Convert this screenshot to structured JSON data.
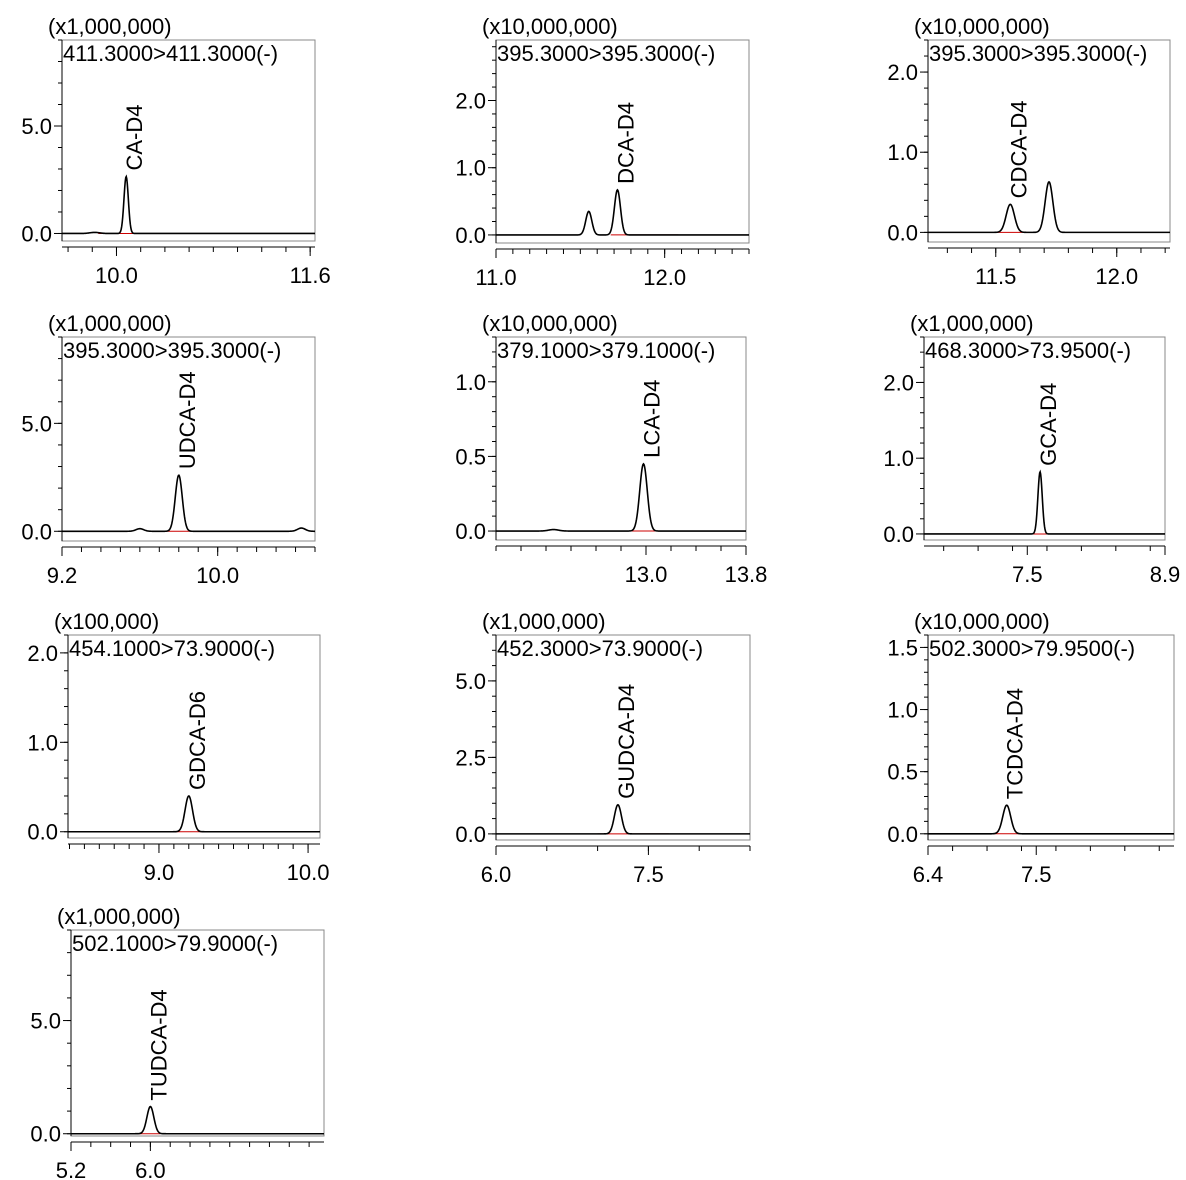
{
  "colors": {
    "trace": "#000000",
    "baseline": "#cc0000",
    "frame": "#888888",
    "axis": "#000000"
  },
  "chart_data": [
    {
      "type": "line",
      "scale": "(x1,000,000)",
      "transition": "411.3000>411.3000(-)",
      "xlim": [
        9.55,
        11.64
      ],
      "ylim": [
        -0.35,
        9.0
      ],
      "xticks": [
        "10.0",
        "11.6"
      ],
      "xtick_values": [
        10.0,
        11.6
      ],
      "yticks": [
        "0.0",
        "5.0"
      ],
      "ytick_values": [
        0.0,
        5.0
      ],
      "x_minor_step": 0.2,
      "y_minor_step": 1.0,
      "peaks": [
        {
          "label": "CA-D4",
          "x": 10.08,
          "height": 2.65,
          "width": 0.018
        },
        {
          "label": "",
          "x": 9.82,
          "height": 0.05,
          "width": 0.04
        }
      ],
      "baseline_range": [
        9.85,
        10.4
      ]
    },
    {
      "type": "line",
      "scale": "(x10,000,000)",
      "transition": "395.3000>395.3000(-)",
      "xlim": [
        11.0,
        12.5
      ],
      "ylim": [
        -0.12,
        2.9
      ],
      "xticks": [
        "11.0",
        "12.0"
      ],
      "xtick_values": [
        11.0,
        12.0
      ],
      "yticks": [
        "0.0",
        "1.0",
        "2.0"
      ],
      "ytick_values": [
        0.0,
        1.0,
        2.0
      ],
      "x_minor_step": 0.1,
      "y_minor_step": 0.2,
      "peaks": [
        {
          "label": "DCA-D4",
          "x": 11.72,
          "height": 0.67,
          "width": 0.018
        },
        {
          "label": "",
          "x": 11.55,
          "height": 0.35,
          "width": 0.018
        }
      ],
      "baseline_range": [
        11.68,
        12.08
      ]
    },
    {
      "type": "line",
      "scale": "(x10,000,000)",
      "transition": "395.3000>395.3000(-)",
      "xlim": [
        11.22,
        12.22
      ],
      "ylim": [
        -0.12,
        2.4
      ],
      "xticks": [
        "11.5",
        "12.0"
      ],
      "xtick_values": [
        11.5,
        12.0
      ],
      "yticks": [
        "0.0",
        "1.0",
        "2.0"
      ],
      "ytick_values": [
        0.0,
        1.0,
        2.0
      ],
      "x_minor_step": 0.1,
      "y_minor_step": 0.2,
      "peaks": [
        {
          "label": "CDCA-D4",
          "x": 11.56,
          "height": 0.35,
          "width": 0.017
        },
        {
          "label": "",
          "x": 11.72,
          "height": 0.63,
          "width": 0.016
        }
      ],
      "baseline_range": [
        11.5,
        11.63
      ]
    },
    {
      "type": "line",
      "scale": "(x1,000,000)",
      "transition": "395.3000>395.3000(-)",
      "xlim": [
        9.2,
        10.5
      ],
      "ylim": [
        -0.45,
        9.0
      ],
      "xticks": [
        "9.2",
        "10.0"
      ],
      "xtick_values": [
        9.2,
        10.0
      ],
      "yticks": [
        "0.0",
        "5.0"
      ],
      "ytick_values": [
        0.0,
        5.0
      ],
      "x_minor_step": 0.1,
      "y_minor_step": 1.0,
      "peaks": [
        {
          "label": "UDCA-D4",
          "x": 9.8,
          "height": 2.6,
          "width": 0.018
        },
        {
          "label": "",
          "x": 9.6,
          "height": 0.12,
          "width": 0.02
        },
        {
          "label": "",
          "x": 10.43,
          "height": 0.15,
          "width": 0.02
        }
      ],
      "baseline_range": [
        9.72,
        9.88
      ]
    },
    {
      "type": "line",
      "scale": "(x10,000,000)",
      "transition": "379.1000>379.1000(-)",
      "xlim": [
        11.8,
        13.8
      ],
      "ylim": [
        -0.06,
        1.3
      ],
      "xticks": [
        "13.0",
        "13.8"
      ],
      "xtick_values": [
        13.0,
        13.8
      ],
      "yticks": [
        "0.0",
        "0.5",
        "1.0"
      ],
      "ytick_values": [
        0.0,
        0.5,
        1.0
      ],
      "x_minor_step": 0.2,
      "y_minor_step": 0.1,
      "peaks": [
        {
          "label": "LCA-D4",
          "x": 12.98,
          "height": 0.45,
          "width": 0.03
        },
        {
          "label": "",
          "x": 12.26,
          "height": 0.01,
          "width": 0.04
        }
      ],
      "baseline_range": [
        12.75,
        13.55
      ]
    },
    {
      "type": "line",
      "scale": "(x1,000,000)",
      "transition": "468.3000>73.9500(-)",
      "xlim": [
        6.45,
        8.9
      ],
      "ylim": [
        -0.08,
        2.6
      ],
      "xticks": [
        "7.5",
        "8.9"
      ],
      "xtick_values": [
        7.5,
        8.9
      ],
      "yticks": [
        "0.0",
        "1.0",
        "2.0"
      ],
      "ytick_values": [
        0.0,
        1.0,
        2.0
      ],
      "x_minor_step": 0.35,
      "y_minor_step": 0.2,
      "peaks": [
        {
          "label": "GCA-D4",
          "x": 7.63,
          "height": 0.82,
          "width": 0.022
        }
      ],
      "baseline_range": [
        7.4,
        8.3
      ]
    },
    {
      "type": "line",
      "scale": "(x100,000)",
      "transition": "454.1000>73.9000(-)",
      "xlim": [
        8.39,
        10.08
      ],
      "ylim": [
        -0.07,
        2.2
      ],
      "xticks": [
        "9.0",
        "10.0"
      ],
      "xtick_values": [
        9.0,
        10.0
      ],
      "yticks": [
        "0.0",
        "1.0",
        "2.0"
      ],
      "ytick_values": [
        0.0,
        1.0,
        2.0
      ],
      "x_minor_step": 0.1,
      "y_minor_step": 0.2,
      "peaks": [
        {
          "label": "GDCA-D6",
          "x": 9.2,
          "height": 0.4,
          "width": 0.025
        }
      ],
      "baseline_range": [
        9.05,
        9.55
      ]
    },
    {
      "type": "line",
      "scale": "(x1,000,000)",
      "transition": "452.3000>73.9000(-)",
      "xlim": [
        6.0,
        8.5
      ],
      "ylim": [
        -0.2,
        6.5
      ],
      "xticks": [
        "6.0",
        "7.5"
      ],
      "xtick_values": [
        6.0,
        7.5
      ],
      "yticks": [
        "0.0",
        "2.5",
        "5.0"
      ],
      "ytick_values": [
        0.0,
        2.5,
        5.0
      ],
      "x_minor_step": 0.5,
      "y_minor_step": 0.5,
      "peaks": [
        {
          "label": "GUDCA-D4",
          "x": 7.2,
          "height": 0.95,
          "width": 0.035
        }
      ],
      "baseline_range": [
        7.0,
        7.7
      ]
    },
    {
      "type": "line",
      "scale": "(x10,000,000)",
      "transition": "502.3000>79.9500(-)",
      "xlim": [
        6.4,
        8.9
      ],
      "ylim": [
        -0.05,
        1.6
      ],
      "xticks": [
        "6.4",
        "7.5"
      ],
      "xtick_values": [
        6.4,
        7.5
      ],
      "yticks": [
        "0.0",
        "0.5",
        "1.0",
        "1.5"
      ],
      "ytick_values": [
        0.0,
        0.5,
        1.0,
        1.5
      ],
      "x_minor_step": 0.35,
      "y_minor_step": 0.1,
      "peaks": [
        {
          "label": "TCDCA-D4",
          "x": 7.2,
          "height": 0.23,
          "width": 0.04
        }
      ],
      "baseline_range": [
        7.05,
        7.85
      ]
    },
    {
      "type": "line",
      "scale": "(x1,000,000)",
      "transition": "502.1000>79.9000(-)",
      "xlim": [
        5.2,
        7.75
      ],
      "ylim": [
        -0.1,
        9.0
      ],
      "xticks": [
        "5.2",
        "6.0"
      ],
      "xtick_values": [
        5.2,
        6.0
      ],
      "yticks": [
        "0.0",
        "5.0"
      ],
      "ytick_values": [
        0.0,
        5.0
      ],
      "x_minor_step": 0.2,
      "y_minor_step": 1.0,
      "peaks": [
        {
          "label": "TUDCA-D4",
          "x": 6.0,
          "height": 1.2,
          "width": 0.035
        }
      ],
      "baseline_range": [
        5.7,
        6.1
      ]
    }
  ]
}
